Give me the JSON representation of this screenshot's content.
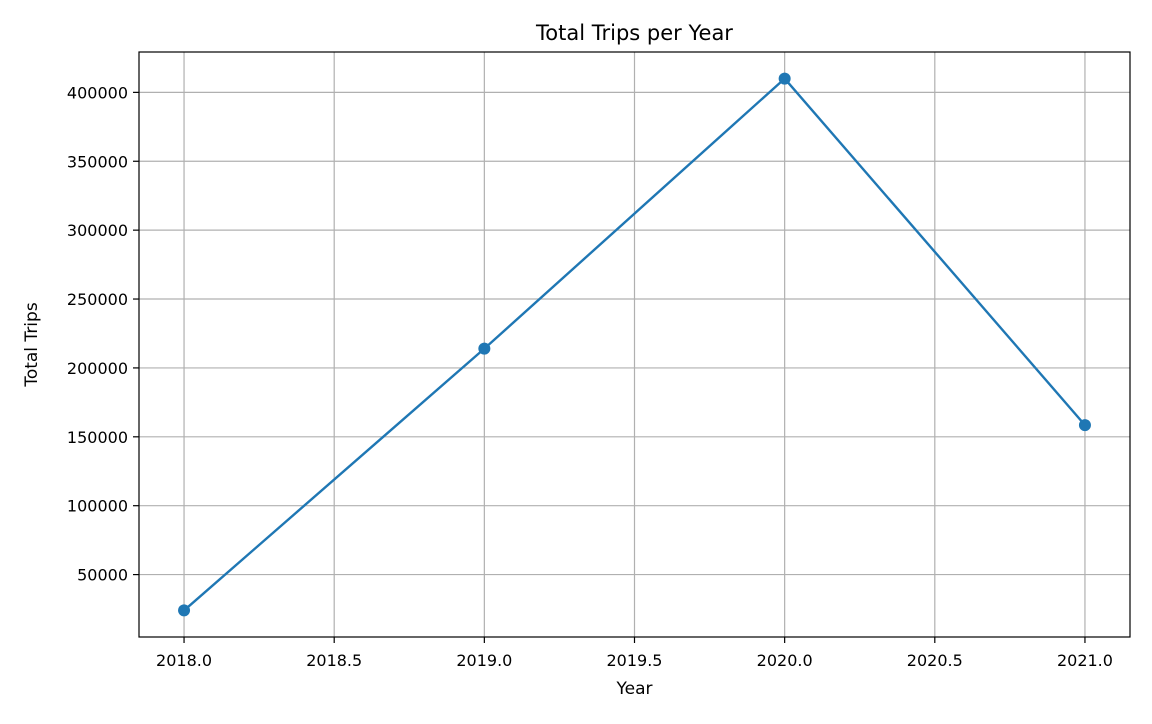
{
  "chart_data": {
    "type": "line",
    "title": "Total Trips per Year",
    "xlabel": "Year",
    "ylabel": "Total Trips",
    "x": [
      2018,
      2019,
      2020,
      2021
    ],
    "series": [
      {
        "values": [
          24000,
          214000,
          410000,
          158500
        ]
      }
    ],
    "xlim": [
      2017.85,
      2021.15
    ],
    "ylim": [
      4700,
      429300
    ],
    "xticks": [
      2018.0,
      2018.5,
      2019.0,
      2019.5,
      2020.0,
      2020.5,
      2021.0
    ],
    "xtick_labels": [
      "2018.0",
      "2018.5",
      "2019.0",
      "2019.5",
      "2020.0",
      "2020.5",
      "2021.0"
    ],
    "yticks": [
      50000,
      100000,
      150000,
      200000,
      250000,
      300000,
      350000,
      400000
    ],
    "ytick_labels": [
      "50000",
      "100000",
      "150000",
      "200000",
      "250000",
      "300000",
      "350000",
      "400000"
    ],
    "grid": true,
    "markers": true,
    "line_color": "#1f77b4",
    "grid_color": "#b0b0b0"
  }
}
